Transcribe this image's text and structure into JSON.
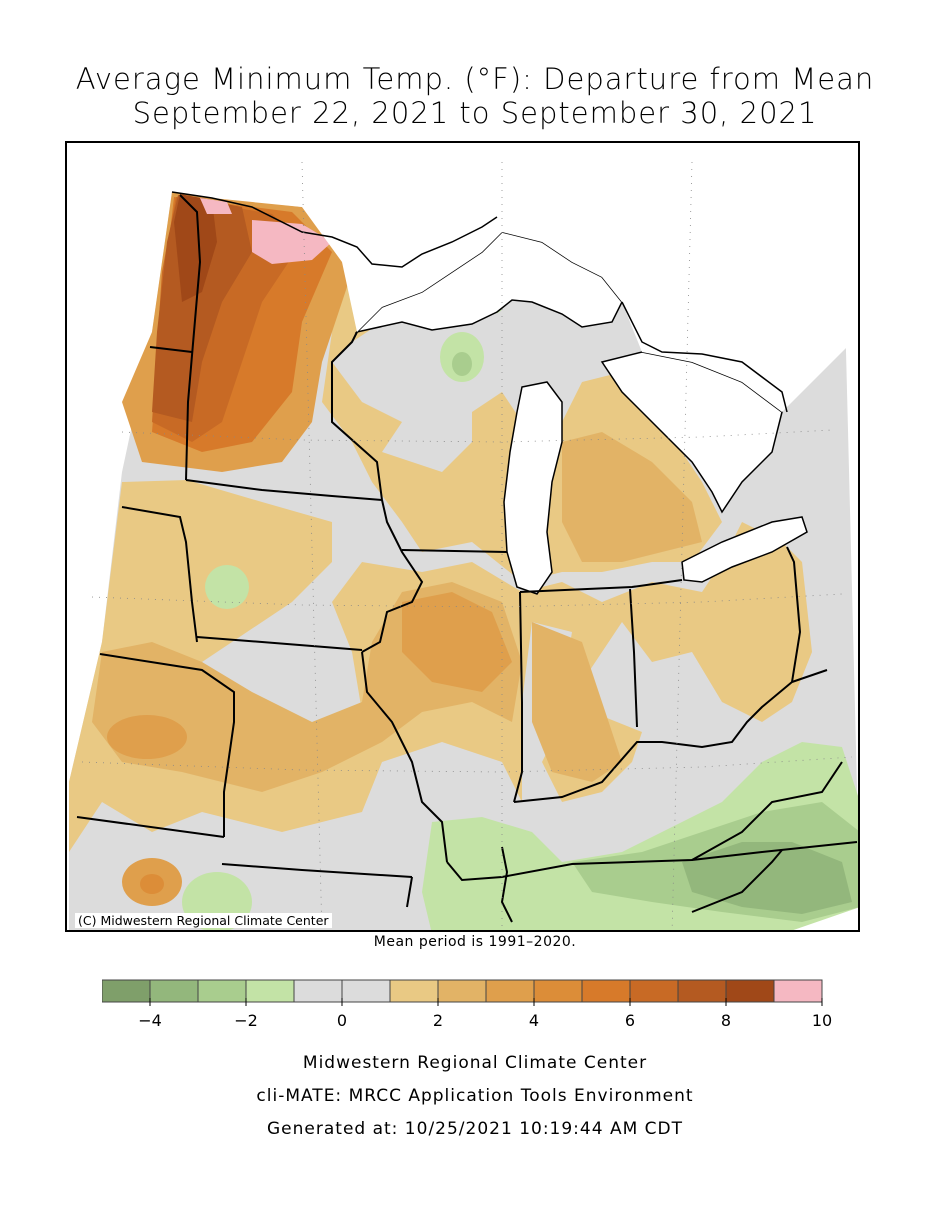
{
  "title": {
    "line1": "Average Minimum Temp. (°F): Departure from Mean",
    "line2": "September 22, 2021 to September 30, 2021"
  },
  "map": {
    "copyright": "(C) Midwestern Regional Climate Center",
    "mean_note": "Mean period is 1991–2020."
  },
  "legend": {
    "min": -5,
    "max": 10,
    "step": 1,
    "tick_labels": [
      "-4",
      "-2",
      "0",
      "2",
      "4",
      "6",
      "8",
      "10"
    ],
    "tick_values": [
      -4,
      -2,
      0,
      2,
      4,
      6,
      8,
      10
    ],
    "colors": [
      "#7f9f6a",
      "#93b77c",
      "#a9cd8e",
      "#c3e3a6",
      "#dcdcdc",
      "#dcdcdc",
      "#e9c984",
      "#e2b366",
      "#df9f4c",
      "#dc8d38",
      "#d77a2a",
      "#c86a25",
      "#b45a21",
      "#a04818",
      "#f5b8c2"
    ]
  },
  "footer": {
    "line1": "Midwestern Regional Climate Center",
    "line2": "cli-MATE: MRCC Application Tools Environment",
    "line3": "Generated at: 10/25/2021 10:19:44 AM CDT"
  }
}
